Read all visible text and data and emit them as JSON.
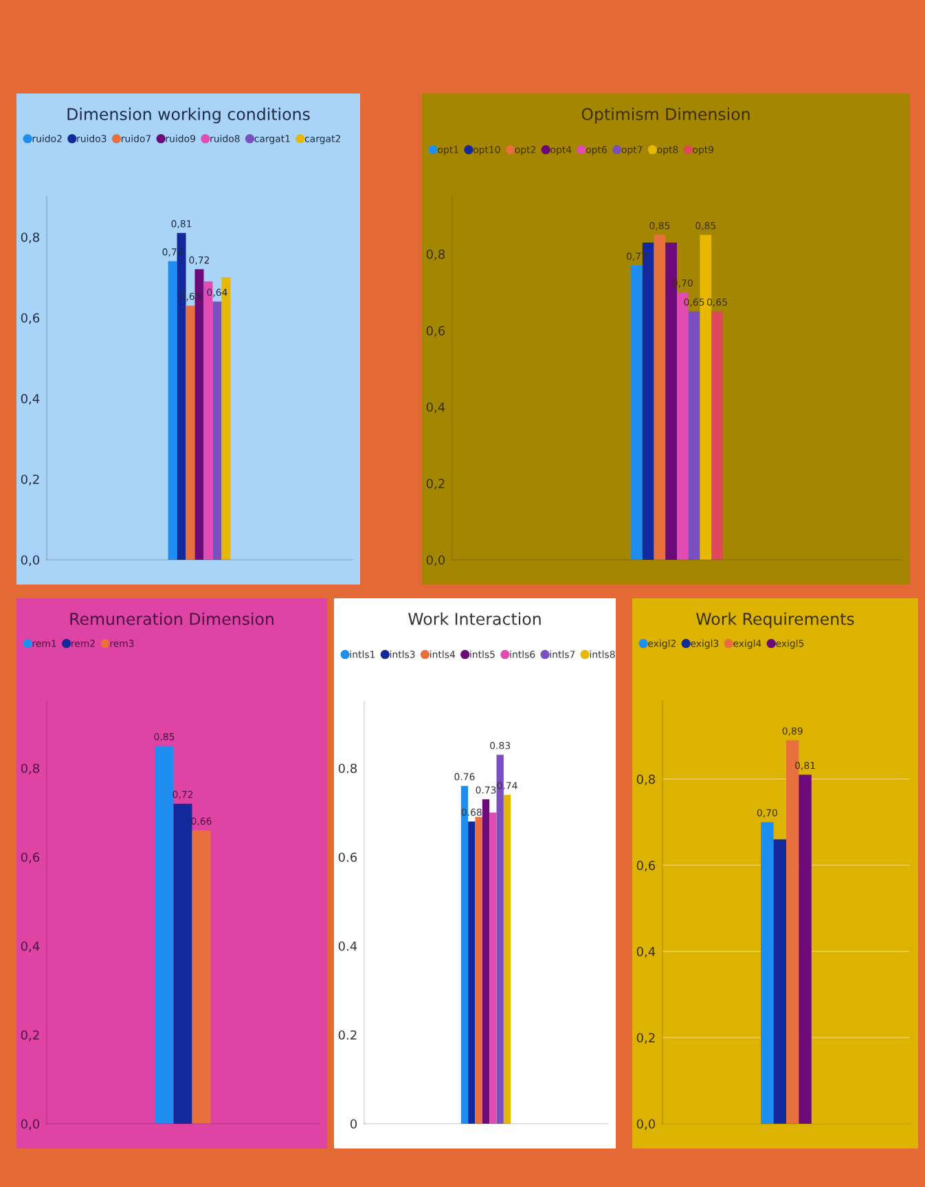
{
  "chart_data": [
    {
      "type": "bar",
      "title": "Dimension working conditions",
      "categories": [
        null
      ],
      "legend": "top left",
      "grid": false,
      "ylim": [
        0,
        0.9
      ],
      "yticks": [
        {
          "value": 0,
          "label": "0,0"
        },
        {
          "value": 0.2,
          "label": "0,2"
        },
        {
          "value": 0.4,
          "label": "0,4"
        },
        {
          "value": 0.6,
          "label": "0,6"
        },
        {
          "value": 0.8,
          "label": "0,8"
        }
      ],
      "series": [
        {
          "name": "ruido2",
          "color": "#1e8ff0",
          "values": [
            0.74
          ],
          "value_labels": [
            "0,74"
          ]
        },
        {
          "name": "ruido3",
          "color": "#142a9c",
          "values": [
            0.81
          ],
          "value_labels": [
            "0,81"
          ]
        },
        {
          "name": "ruido7",
          "color": "#e8703f",
          "values": [
            0.63
          ],
          "value_labels": [
            "0,63"
          ]
        },
        {
          "name": "ruido9",
          "color": "#6b0a78",
          "values": [
            0.72
          ],
          "value_labels": [
            "0,72"
          ]
        },
        {
          "name": "ruido8",
          "color": "#e04cb4",
          "values": [
            0.69
          ],
          "value_labels": [
            null
          ]
        },
        {
          "name": "cargat1",
          "color": "#7a4fc0",
          "values": [
            0.64
          ],
          "value_labels": [
            "0,64"
          ]
        },
        {
          "name": "cargat2",
          "color": "#e6b800",
          "values": [
            0.7
          ],
          "value_labels": [
            null
          ]
        }
      ]
    },
    {
      "type": "bar",
      "title": "Optimism Dimension",
      "categories": [
        null
      ],
      "legend": "top left",
      "grid": false,
      "ylim": [
        0,
        0.95
      ],
      "yticks": [
        {
          "value": 0,
          "label": "0,0"
        },
        {
          "value": 0.2,
          "label": "0,2"
        },
        {
          "value": 0.4,
          "label": "0,4"
        },
        {
          "value": 0.6,
          "label": "0,6"
        },
        {
          "value": 0.8,
          "label": "0,8"
        }
      ],
      "series": [
        {
          "name": "opt1",
          "color": "#1e8ff0",
          "values": [
            0.77
          ],
          "value_labels": [
            "0,77"
          ]
        },
        {
          "name": "opt10",
          "color": "#142a9c",
          "values": [
            0.83
          ],
          "value_labels": [
            null
          ]
        },
        {
          "name": "opt2",
          "color": "#e8703f",
          "values": [
            0.85
          ],
          "value_labels": [
            "0,85"
          ]
        },
        {
          "name": "opt4",
          "color": "#6b0a78",
          "values": [
            0.83
          ],
          "value_labels": [
            null
          ]
        },
        {
          "name": "opt6",
          "color": "#e04cb4",
          "values": [
            0.7
          ],
          "value_labels": [
            "0,70"
          ]
        },
        {
          "name": "opt7",
          "color": "#7a4fc0",
          "values": [
            0.65
          ],
          "value_labels": [
            "0,65"
          ]
        },
        {
          "name": "opt8",
          "color": "#e6b800",
          "values": [
            0.85
          ],
          "value_labels": [
            "0,85"
          ]
        },
        {
          "name": "opt9",
          "color": "#e0485e",
          "values": [
            0.65
          ],
          "value_labels": [
            "0,65"
          ]
        }
      ]
    },
    {
      "type": "bar",
      "title": "Remuneration Dimension",
      "categories": [
        null
      ],
      "legend": "top left",
      "grid": false,
      "ylim": [
        0,
        0.95
      ],
      "yticks": [
        {
          "value": 0,
          "label": "0,0"
        },
        {
          "value": 0.2,
          "label": "0,2"
        },
        {
          "value": 0.4,
          "label": "0,4"
        },
        {
          "value": 0.6,
          "label": "0,6"
        },
        {
          "value": 0.8,
          "label": "0,8"
        }
      ],
      "series": [
        {
          "name": "rem1",
          "color": "#1e8ff0",
          "values": [
            0.85
          ],
          "value_labels": [
            "0,85"
          ]
        },
        {
          "name": "rem2",
          "color": "#142a9c",
          "values": [
            0.72
          ],
          "value_labels": [
            "0,72"
          ]
        },
        {
          "name": "rem3",
          "color": "#e8703f",
          "values": [
            0.66
          ],
          "value_labels": [
            "0,66"
          ]
        }
      ]
    },
    {
      "type": "bar",
      "title": "Work Interaction",
      "categories": [
        null
      ],
      "legend": "top left",
      "grid": false,
      "ylim": [
        0,
        0.95
      ],
      "yticks": [
        0,
        0.2,
        0.4,
        0.6,
        0.8
      ],
      "series": [
        {
          "name": "intls1",
          "color": "#1e8ff0",
          "values": [
            0.76
          ],
          "value_labels": [
            "0.76"
          ]
        },
        {
          "name": "intls3",
          "color": "#142a9c",
          "values": [
            0.68
          ],
          "value_labels": [
            "0.68"
          ]
        },
        {
          "name": "intls4",
          "color": "#e8703f",
          "values": [
            0.69
          ],
          "value_labels": [
            null
          ]
        },
        {
          "name": "intls5",
          "color": "#6b0a78",
          "values": [
            0.73
          ],
          "value_labels": [
            "0.73"
          ]
        },
        {
          "name": "intls6",
          "color": "#e04cb4",
          "values": [
            0.7
          ],
          "value_labels": [
            null
          ]
        },
        {
          "name": "intls7",
          "color": "#7a4fc0",
          "values": [
            0.83
          ],
          "value_labels": [
            "0.83"
          ]
        },
        {
          "name": "intls8",
          "color": "#e6b800",
          "values": [
            0.74
          ],
          "value_labels": [
            "0.74"
          ]
        }
      ]
    },
    {
      "type": "bar",
      "title": "Work Requirements",
      "categories": [
        null
      ],
      "legend": "top left",
      "grid": "y",
      "ylim": [
        0,
        0.98
      ],
      "yticks": [
        {
          "value": 0,
          "label": "0,0"
        },
        {
          "value": 0.2,
          "label": "0,2"
        },
        {
          "value": 0.4,
          "label": "0,4"
        },
        {
          "value": 0.6,
          "label": "0,6"
        },
        {
          "value": 0.8,
          "label": "0,8"
        }
      ],
      "series": [
        {
          "name": "exigl2",
          "color": "#1e8ff0",
          "values": [
            0.7
          ],
          "value_labels": [
            "0,70"
          ]
        },
        {
          "name": "exigl3",
          "color": "#142a9c",
          "values": [
            0.66
          ],
          "value_labels": [
            null
          ]
        },
        {
          "name": "exigl4",
          "color": "#e8703f",
          "values": [
            0.89
          ],
          "value_labels": [
            "0,89"
          ]
        },
        {
          "name": "exigl5",
          "color": "#6b0a78",
          "values": [
            0.81
          ],
          "value_labels": [
            "0,81"
          ]
        }
      ]
    }
  ]
}
